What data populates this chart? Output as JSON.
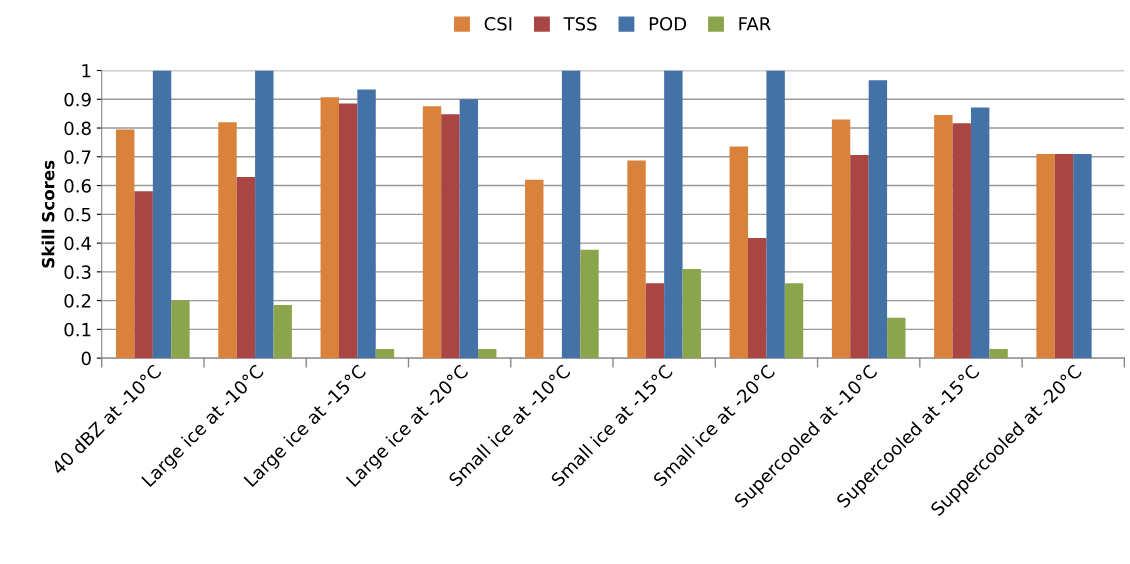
{
  "chart_data": {
    "type": "bar",
    "ylabel": "Skill Scores",
    "categories": [
      "40 dBZ at -10°C",
      "Large ice at -10°C",
      "Large ice at -15°C",
      "Large ice at -20°C",
      "Small ice at -10°C",
      "Small ice at -15°C",
      "Small ice at -20°C",
      "Supercooled at -10°C",
      "Supercooled at -15°C",
      "Suppercooled at -20°C"
    ],
    "series": [
      {
        "name": "CSI",
        "color": "#d9823b",
        "values": [
          0.795,
          0.82,
          0.907,
          0.876,
          0.62,
          0.687,
          0.736,
          0.83,
          0.845,
          0.71
        ]
      },
      {
        "name": "TSS",
        "color": "#a94643",
        "values": [
          0.58,
          0.63,
          0.885,
          0.848,
          0,
          0.26,
          0.418,
          0.706,
          0.817,
          0.71
        ]
      },
      {
        "name": "POD",
        "color": "#4471a6",
        "values": [
          1,
          1,
          0.934,
          0.9,
          1,
          1,
          1,
          0.966,
          0.871,
          0.71
        ]
      },
      {
        "name": "FAR",
        "color": "#8ba54c",
        "values": [
          0.2,
          0.185,
          0.032,
          0.032,
          0.377,
          0.31,
          0.26,
          0.14,
          0.032,
          0
        ]
      }
    ],
    "ylim": [
      0,
      1
    ],
    "yticks": [
      0,
      0.1,
      0.2,
      0.3,
      0.4,
      0.5,
      0.6,
      0.7,
      0.8,
      0.9,
      1
    ],
    "grid": "y",
    "legend": "top"
  }
}
